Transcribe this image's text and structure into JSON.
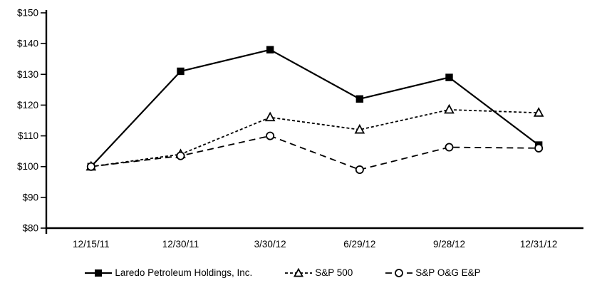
{
  "chart_data": {
    "type": "line",
    "title": "",
    "x_categories": [
      "12/15/11",
      "12/30/11",
      "3/30/12",
      "6/29/12",
      "9/28/12",
      "12/31/12"
    ],
    "series": [
      {
        "name": "Laredo Petroleum Holdings, Inc.",
        "marker": "filled-square",
        "line_style": "solid",
        "values": [
          100,
          131,
          138,
          122,
          129,
          107
        ]
      },
      {
        "name": "S&P 500",
        "marker": "open-triangle",
        "line_style": "short-dash",
        "values": [
          100,
          104,
          116,
          112,
          118.5,
          117.5
        ]
      },
      {
        "name": "S&P O&G E&P",
        "marker": "open-circle",
        "line_style": "long-dash",
        "values": [
          100,
          103.5,
          110,
          99,
          106.3,
          106
        ]
      }
    ],
    "y_axis": {
      "min": 80,
      "max": 150,
      "step": 10,
      "tick_prefix": "$",
      "tick_labels": [
        "$80",
        "$90",
        "$100",
        "$110",
        "$120",
        "$130",
        "$140",
        "$150"
      ]
    },
    "x_axis": {
      "label": ""
    },
    "ylim": [
      80,
      150
    ],
    "grid": false,
    "legend_position": "bottom",
    "colors": {
      "foreground": "#000000",
      "background": "#ffffff"
    }
  }
}
